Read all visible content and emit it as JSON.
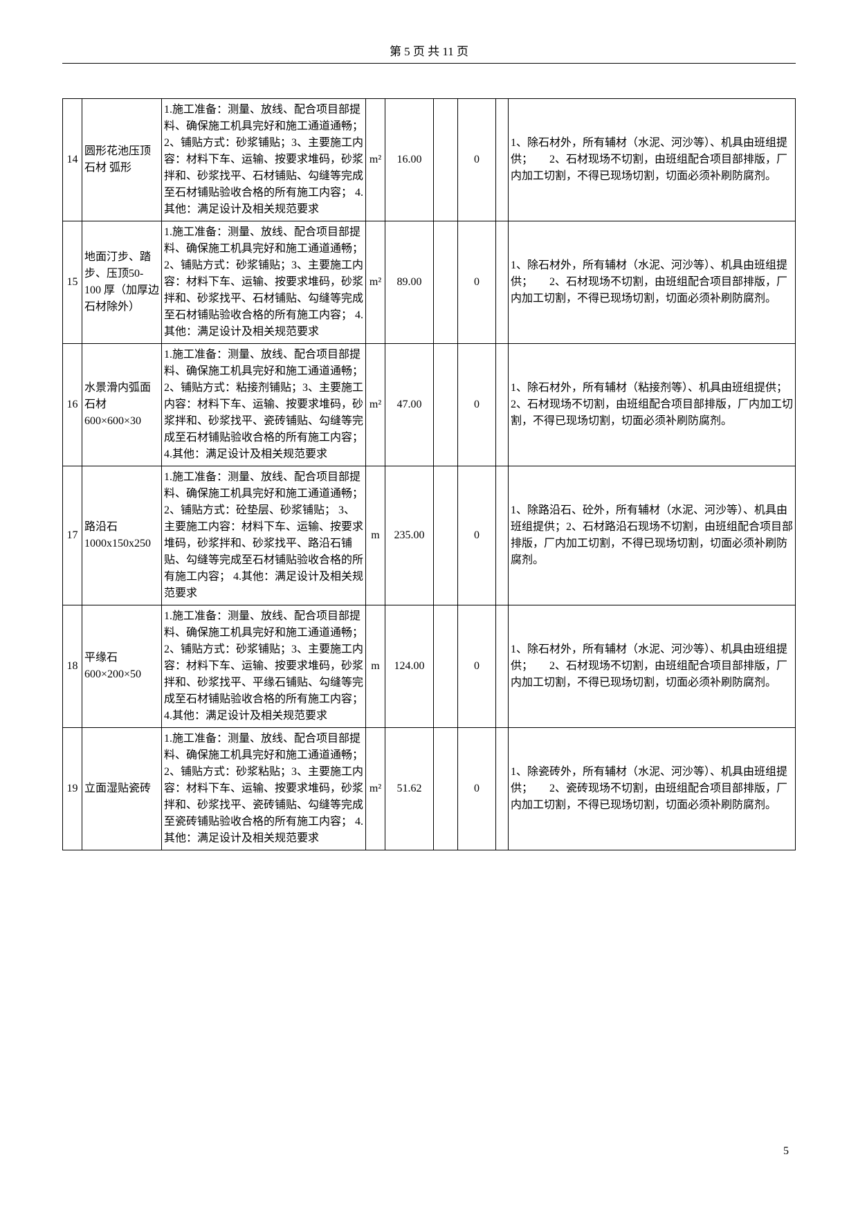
{
  "pageHeader": "第 5 页 共 11 页",
  "pageNumber": "5",
  "rows": [
    {
      "idx": "14",
      "name": "圆形花池压顶石材 弧形",
      "desc": "1.施工准备：测量、放线、配合项目部提料、确保施工机具完好和施工通道通畅；2、铺贴方式：砂浆铺贴；3、主要施工内容：材料下车、运输、按要求堆码，砂浆拌和、砂浆找平、石材铺贴、勾缝等完成至石材铺贴验收合格的所有施工内容；\n4.其他：满足设计及相关规范要求",
      "unit": "m²",
      "qty": "16.00",
      "zero": "0",
      "note": "1、除石材外，所有辅材（水泥、河沙等）、机具由班组提供；　　2、石材现场不切割，由班组配合项目部排版，厂内加工切割，不得已现场切割，切面必须补刷防腐剂。"
    },
    {
      "idx": "15",
      "name": "地面汀步、踏步、压顶50-100 厚（加厚边石材除外）",
      "desc": "1.施工准备：测量、放线、配合项目部提料、确保施工机具完好和施工通道通畅；2、铺贴方式：砂浆铺贴；3、主要施工内容：材料下车、运输、按要求堆码，砂浆拌和、砂浆找平、石材铺贴、勾缝等完成至石材铺贴验收合格的所有施工内容；\n4.其他：满足设计及相关规范要求",
      "unit": "m²",
      "qty": "89.00",
      "zero": "0",
      "note": "1、除石材外，所有辅材（水泥、河沙等）、机具由班组提供；　　2、石材现场不切割，由班组配合项目部排版，厂内加工切割，不得已现场切割，切面必须补刷防腐剂。"
    },
    {
      "idx": "16",
      "name": "水景滑内弧面石材　600×600×30",
      "desc": "1.施工准备：测量、放线、配合项目部提料、确保施工机具完好和施工通道通畅；2、铺贴方式：粘接剂铺贴；3、主要施工内容：材料下车、运输、按要求堆码，砂浆拌和、砂浆找平、瓷砖铺贴、勾缝等完成至石材铺贴验收合格的所有施工内容；\n4.其他：满足设计及相关规范要求",
      "unit": "m²",
      "qty": "47.00",
      "zero": "0",
      "note": "1、除石材外，所有辅材（粘接剂等）、机具由班组提供；　　　2、石材现场不切割，由班组配合项目部排版，厂内加工切割，不得已现场切割，切面必须补刷防腐剂。"
    },
    {
      "idx": "17",
      "name": "路沿石1000x150x250",
      "desc": "1.施工准备：测量、放线、配合项目部提料、确保施工机具完好和施工通道通畅；2、铺贴方式：砼垫层、砂浆铺贴；\n3、主要施工内容：材料下车、运输、按要求堆码，砂浆拌和、砂浆找平、路沿石铺贴、勾缝等完成至石材铺贴验收合格的所有施工内容；\n4.其他：满足设计及相关规范要求",
      "unit": "m",
      "qty": "235.00",
      "zero": "0",
      "note": "1、除路沿石、砼外，所有辅材（水泥、河沙等）、机具由班组提供；2、石材路沿石现场不切割，由班组配合项目部排版，厂内加工切割，不得已现场切割，切面必须补刷防腐剂。"
    },
    {
      "idx": "18",
      "name": "平缘石 600×200×50",
      "desc": "1.施工准备：测量、放线、配合项目部提料、确保施工机具完好和施工通道通畅；2、铺贴方式：砂浆铺贴；3、主要施工内容：材料下车、运输、按要求堆码，砂浆拌和、砂浆找平、平缘石铺贴、勾缝等完成至石材铺贴验收合格的所有施工内容；\n4.其他：满足设计及相关规范要求",
      "unit": "m",
      "qty": "124.00",
      "zero": "0",
      "note": "1、除石材外，所有辅材（水泥、河沙等）、机具由班组提供；　　2、石材现场不切割，由班组配合项目部排版，厂内加工切割，不得已现场切割，切面必须补刷防腐剂。"
    },
    {
      "idx": "19",
      "name": "立面湿贴瓷砖",
      "desc": "1.施工准备：测量、放线、配合项目部提料、确保施工机具完好和施工通道通畅；2、铺贴方式：砂浆粘贴；3、主要施工内容：材料下车、运输、按要求堆码，砂浆拌和、砂浆找平、瓷砖铺贴、勾缝等完成至瓷砖铺贴验收合格的所有施工内容；\n4.其他：满足设计及相关规范要求",
      "unit": "m²",
      "qty": "51.62",
      "zero": "0",
      "note": "1、除瓷砖外，所有辅材（水泥、河沙等）、机具由班组提供；　　2、瓷砖现场不切割，由班组配合项目部排版，厂内加工切割，不得已现场切割，切面必须补刷防腐剂。"
    }
  ]
}
